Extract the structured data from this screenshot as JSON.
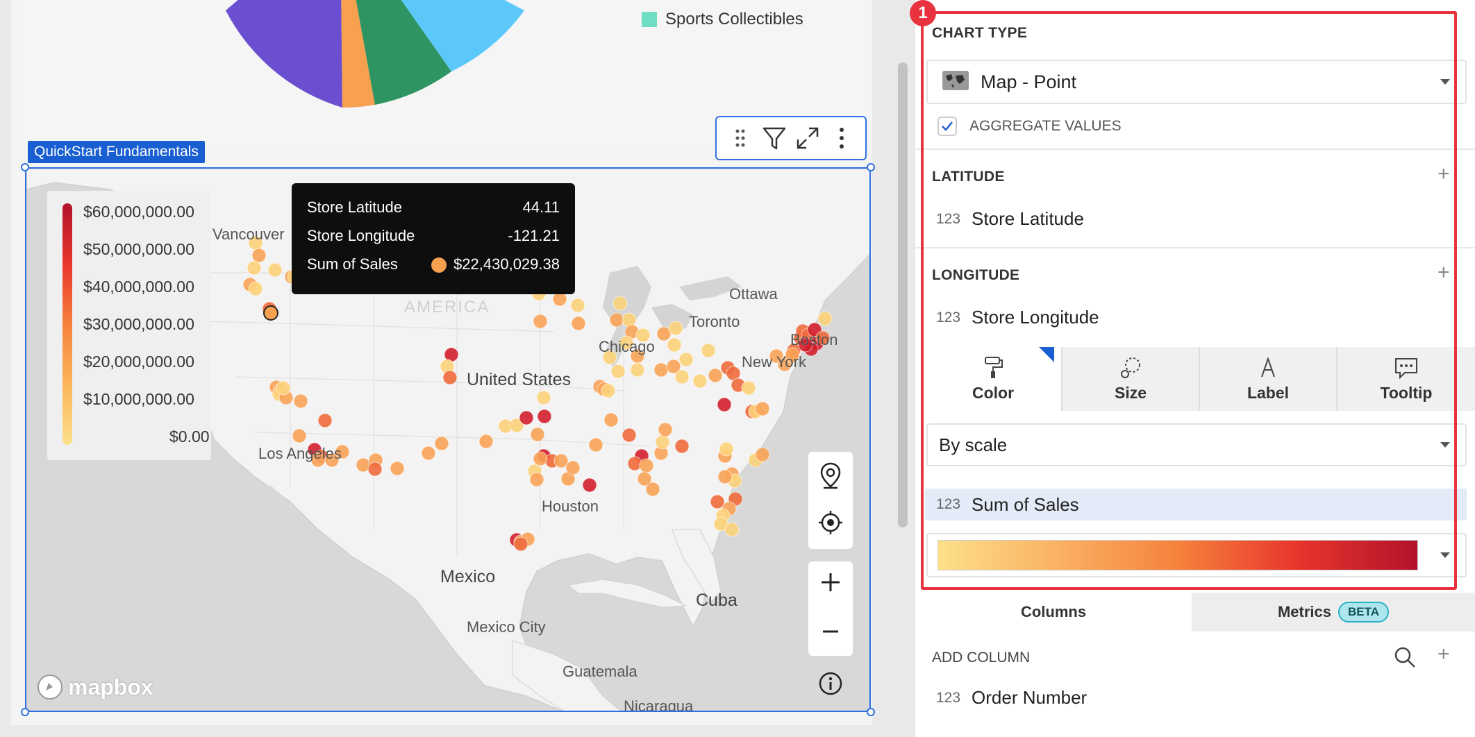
{
  "pie_legend": {
    "label": "Sports Collectibles",
    "color": "#6fdcc4"
  },
  "map_card": {
    "title": "QuickStart Fundamentals",
    "legend": [
      "$60,000,000.00",
      "$50,000,000.00",
      "$40,000,000.00",
      "$30,000,000.00",
      "$20,000,000.00",
      "$10,000,000.00",
      "$0.00"
    ],
    "places": {
      "vancouver": "Vancouver",
      "ottawa": "Ottawa",
      "toronto": "Toronto",
      "united_states": "United States",
      "chicago": "Chicago",
      "new_york": "New York",
      "boston": "Boston",
      "los_angeles": "Los Angeles",
      "houston": "Houston",
      "mexico": "Mexico",
      "mexico_city": "Mexico City",
      "cuba": "Cuba",
      "guatemala": "Guatemala",
      "nicaragua": "Nicaragua",
      "america": "AMERICA"
    },
    "tooltip": {
      "row1_label": "Store Latitude",
      "row1_value": "44.11",
      "row2_label": "Store Longitude",
      "row2_value": "-121.21",
      "row3_label": "Sum of Sales",
      "row3_value": "$22,430,029.38"
    },
    "attribution": "mapbox",
    "toolbar_icons": [
      "drag-handle-icon",
      "filter-icon",
      "expand-icon",
      "more-vertical-icon"
    ],
    "map_controls": [
      "location-pin-icon",
      "locate-crosshair-icon",
      "zoom-in-icon",
      "zoom-out-icon",
      "info-icon"
    ]
  },
  "panel": {
    "badge": "1",
    "chart_type": {
      "title": "CHART TYPE",
      "value": "Map - Point",
      "icon": "world-map-icon"
    },
    "aggregate": {
      "label": "AGGREGATE VALUES",
      "checked": true
    },
    "latitude": {
      "title": "LATITUDE",
      "type": "123",
      "field": "Store Latitude"
    },
    "longitude": {
      "title": "LONGITUDE",
      "type": "123",
      "field": "Store Longitude"
    },
    "tabs": [
      {
        "label": "Color",
        "icon": "paint-roller-icon"
      },
      {
        "label": "Size",
        "icon": "size-circles-icon"
      },
      {
        "label": "Label",
        "icon": "label-a-icon"
      },
      {
        "label": "Tooltip",
        "icon": "tooltip-bubble-icon"
      }
    ],
    "color_mode": "By scale",
    "color_field": {
      "type": "123",
      "field": "Sum of Sales"
    },
    "scale_colors": {
      "start": "#fde08b",
      "mid": "#f6823c",
      "end": "#b2132b"
    },
    "bottom_tabs": {
      "columns": "Columns",
      "metrics": "Metrics",
      "beta": "BETA"
    },
    "add_column": "ADD COLUMN",
    "first_column": {
      "type": "123",
      "field": "Order Number"
    }
  },
  "colors": {
    "accent": "#2f6fe0",
    "highlight": "#e8323e"
  }
}
